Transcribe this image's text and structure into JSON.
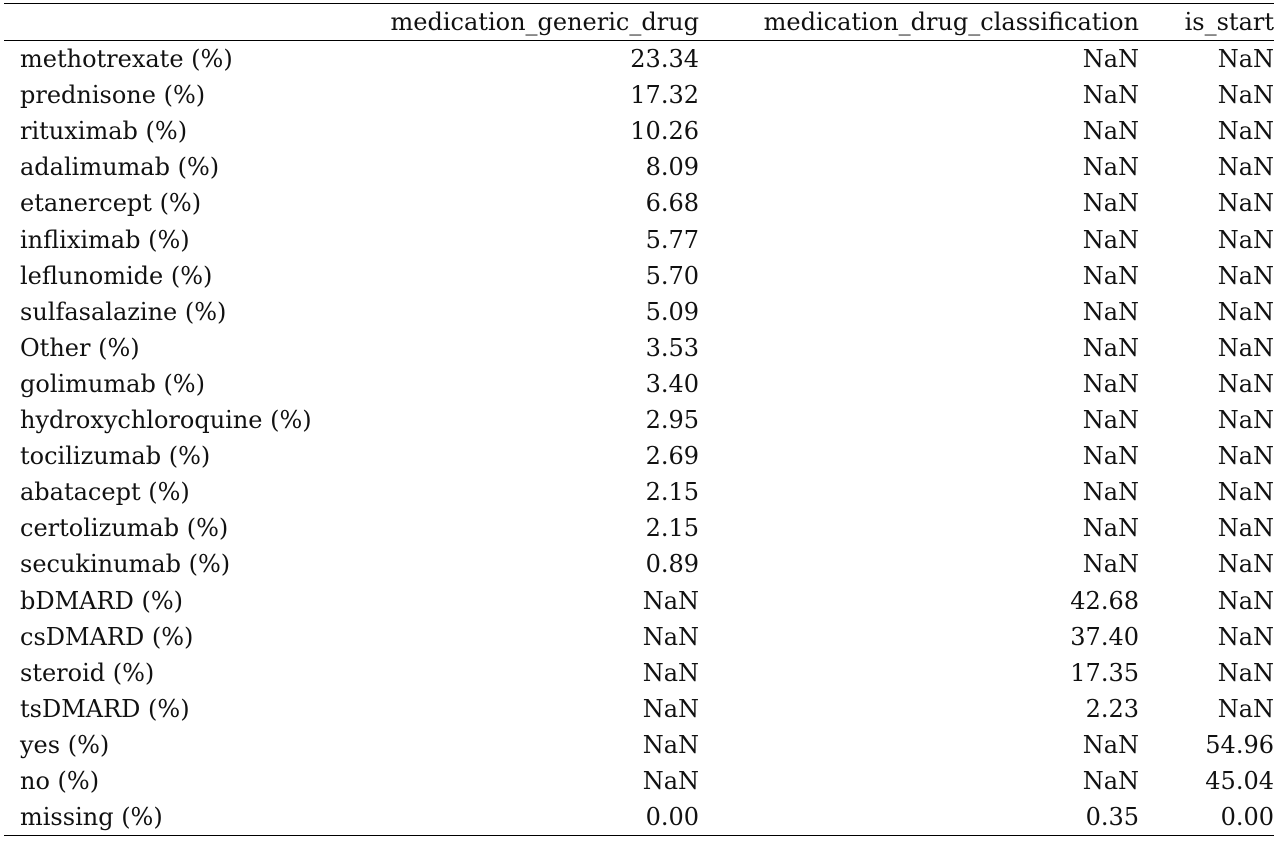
{
  "table": {
    "columns": [
      "",
      "medication_generic_drug",
      "medication_drug_classification",
      "is_start"
    ],
    "rows": [
      {
        "label": "methotrexate (%)",
        "values": [
          "23.34",
          "NaN",
          "NaN"
        ]
      },
      {
        "label": "prednisone (%)",
        "values": [
          "17.32",
          "NaN",
          "NaN"
        ]
      },
      {
        "label": "rituximab (%)",
        "values": [
          "10.26",
          "NaN",
          "NaN"
        ]
      },
      {
        "label": "adalimumab (%)",
        "values": [
          "8.09",
          "NaN",
          "NaN"
        ]
      },
      {
        "label": "etanercept (%)",
        "values": [
          "6.68",
          "NaN",
          "NaN"
        ]
      },
      {
        "label": "infliximab (%)",
        "values": [
          "5.77",
          "NaN",
          "NaN"
        ]
      },
      {
        "label": "leflunomide (%)",
        "values": [
          "5.70",
          "NaN",
          "NaN"
        ]
      },
      {
        "label": "sulfasalazine (%)",
        "values": [
          "5.09",
          "NaN",
          "NaN"
        ]
      },
      {
        "label": "Other (%)",
        "values": [
          "3.53",
          "NaN",
          "NaN"
        ]
      },
      {
        "label": "golimumab (%)",
        "values": [
          "3.40",
          "NaN",
          "NaN"
        ]
      },
      {
        "label": "hydroxychloroquine (%)",
        "values": [
          "2.95",
          "NaN",
          "NaN"
        ]
      },
      {
        "label": "tocilizumab (%)",
        "values": [
          "2.69",
          "NaN",
          "NaN"
        ]
      },
      {
        "label": "abatacept (%)",
        "values": [
          "2.15",
          "NaN",
          "NaN"
        ]
      },
      {
        "label": "certolizumab (%)",
        "values": [
          "2.15",
          "NaN",
          "NaN"
        ]
      },
      {
        "label": "secukinumab (%)",
        "values": [
          "0.89",
          "NaN",
          "NaN"
        ]
      },
      {
        "label": "bDMARD (%)",
        "values": [
          "NaN",
          "42.68",
          "NaN"
        ]
      },
      {
        "label": "csDMARD (%)",
        "values": [
          "NaN",
          "37.40",
          "NaN"
        ]
      },
      {
        "label": "steroid (%)",
        "values": [
          "NaN",
          "17.35",
          "NaN"
        ]
      },
      {
        "label": "tsDMARD (%)",
        "values": [
          "NaN",
          "2.23",
          "NaN"
        ]
      },
      {
        "label": "yes (%)",
        "values": [
          "NaN",
          "NaN",
          "54.96"
        ]
      },
      {
        "label": "no (%)",
        "values": [
          "NaN",
          "NaN",
          "45.04"
        ]
      },
      {
        "label": "missing (%)",
        "values": [
          "0.00",
          "0.35",
          "0.00"
        ]
      }
    ]
  }
}
